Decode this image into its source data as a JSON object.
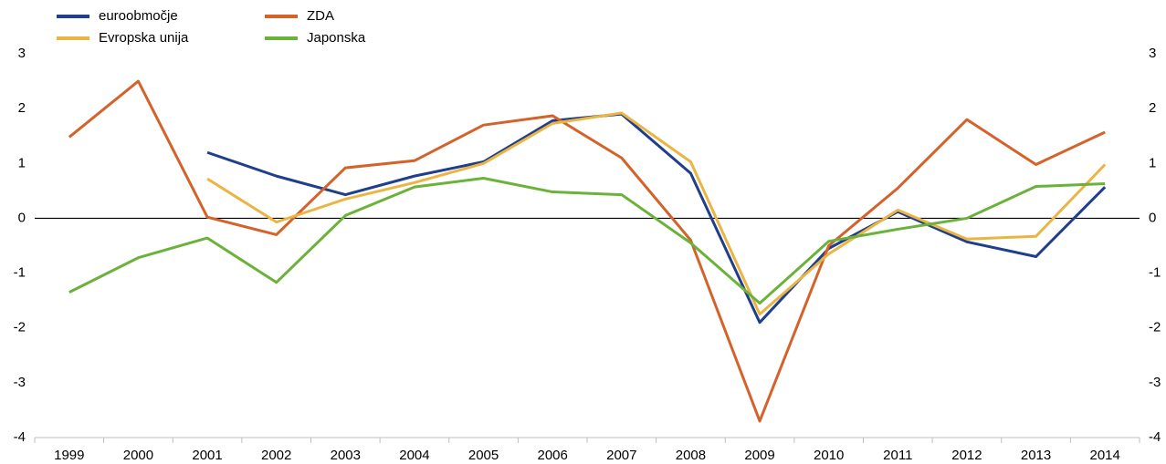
{
  "chart_data": {
    "type": "line",
    "categories": [
      "1999",
      "2000",
      "2001",
      "2002",
      "2003",
      "2004",
      "2005",
      "2006",
      "2007",
      "2008",
      "2009",
      "2010",
      "2011",
      "2012",
      "2013",
      "2014"
    ],
    "series": [
      {
        "name": "euroobmočje",
        "color": "#1f3e8c",
        "values": [
          null,
          null,
          1.2,
          0.77,
          0.43,
          0.77,
          1.03,
          1.78,
          1.9,
          0.82,
          -1.9,
          -0.55,
          0.12,
          -0.43,
          -0.7,
          0.57
        ]
      },
      {
        "name": "ZDA",
        "color": "#d4622a",
        "values": [
          1.48,
          2.5,
          0.02,
          -0.3,
          0.92,
          1.05,
          1.7,
          1.87,
          1.1,
          -0.4,
          -3.7,
          -0.5,
          0.55,
          1.8,
          0.98,
          1.57
        ]
      },
      {
        "name": "Evropska unija",
        "color": "#eab542",
        "values": [
          null,
          null,
          0.72,
          -0.07,
          0.35,
          0.65,
          1.0,
          1.73,
          1.92,
          1.03,
          -1.75,
          -0.65,
          0.15,
          -0.38,
          -0.33,
          0.98
        ]
      },
      {
        "name": "Japonska",
        "color": "#6ab23a",
        "values": [
          -1.35,
          -0.72,
          -0.36,
          -1.17,
          0.05,
          0.57,
          0.73,
          0.48,
          0.43,
          -0.45,
          -1.55,
          -0.42,
          -0.2,
          0.0,
          0.58,
          0.63
        ]
      }
    ],
    "ylim": [
      -4,
      3
    ],
    "yticks": [
      -4,
      -3,
      -2,
      -1,
      0,
      1,
      2,
      3
    ],
    "y2lim": [
      -4,
      3
    ],
    "y2ticks": [
      -4,
      -3,
      -2,
      -1,
      0,
      1,
      2,
      3
    ],
    "legend": "top-left",
    "grid": false
  }
}
